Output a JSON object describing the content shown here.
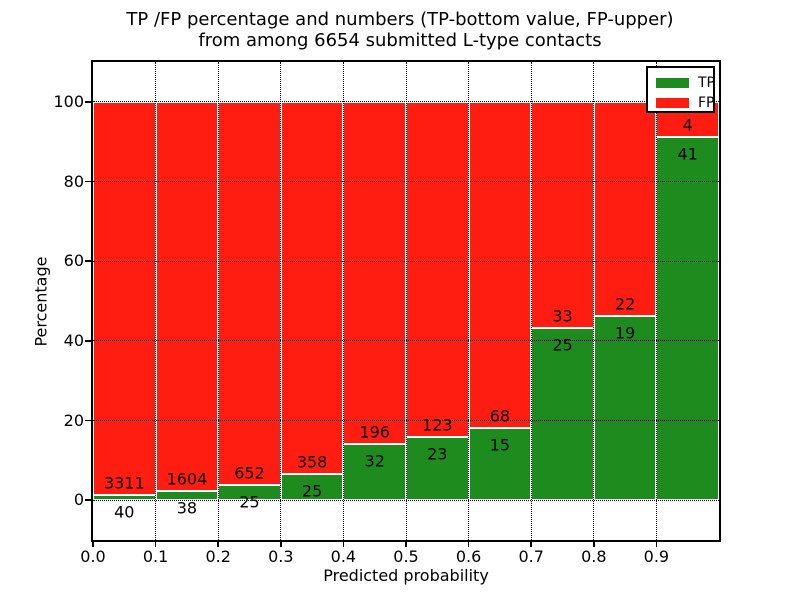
{
  "figure": {
    "title_line1": "TP /FP percentage and numbers (TP-bottom value, FP-upper)",
    "title_line2": "from among 6654 submitted L-type contacts"
  },
  "chart_data": {
    "type": "bar",
    "stacked": true,
    "title": "TP /FP percentage and numbers (TP-bottom value, FP-upper)\nfrom among 6654 submitted L-type contacts",
    "xlabel": "Predicted probability",
    "ylabel": "Percentage",
    "xlim": [
      0.0,
      1.0
    ],
    "ylim": [
      -10,
      110
    ],
    "grid": "dotted, both axes, drawn above bars",
    "legend_position": "upper right",
    "total_submitted": 6654,
    "bin_edges": [
      0.0,
      0.1,
      0.2,
      0.3,
      0.4,
      0.5,
      0.6,
      0.7,
      0.8,
      0.9,
      1.0
    ],
    "x_tick_labels": [
      "0.0",
      "0.1",
      "0.2",
      "0.3",
      "0.4",
      "0.5",
      "0.6",
      "0.7",
      "0.8",
      "0.9"
    ],
    "y_tick_values": [
      0,
      20,
      40,
      60,
      80,
      100
    ],
    "y_tick_labels": [
      "0",
      "20",
      "40",
      "60",
      "80",
      "100"
    ],
    "series": [
      {
        "name": "TP",
        "color": "#1e8b1e",
        "counts": [
          40,
          38,
          25,
          25,
          32,
          23,
          15,
          25,
          19,
          41
        ],
        "percent": [
          1.19,
          2.31,
          3.69,
          6.53,
          14.04,
          15.75,
          18.07,
          43.1,
          46.34,
          91.11
        ]
      },
      {
        "name": "FP",
        "color": "#ff1d11",
        "counts": [
          3311,
          1604,
          652,
          358,
          196,
          123,
          68,
          33,
          22,
          4
        ],
        "percent": [
          98.81,
          97.69,
          96.31,
          93.47,
          85.96,
          84.25,
          81.93,
          56.9,
          53.66,
          8.89
        ]
      }
    ]
  },
  "legend": {
    "entries": [
      {
        "label": "TP",
        "color": "#1e8b1e"
      },
      {
        "label": "FP",
        "color": "#ff1d11"
      }
    ]
  },
  "colors": {
    "tp": "#1e8b1e",
    "fp": "#ff1d11",
    "grid": "#000000",
    "background": "#ffffff"
  }
}
